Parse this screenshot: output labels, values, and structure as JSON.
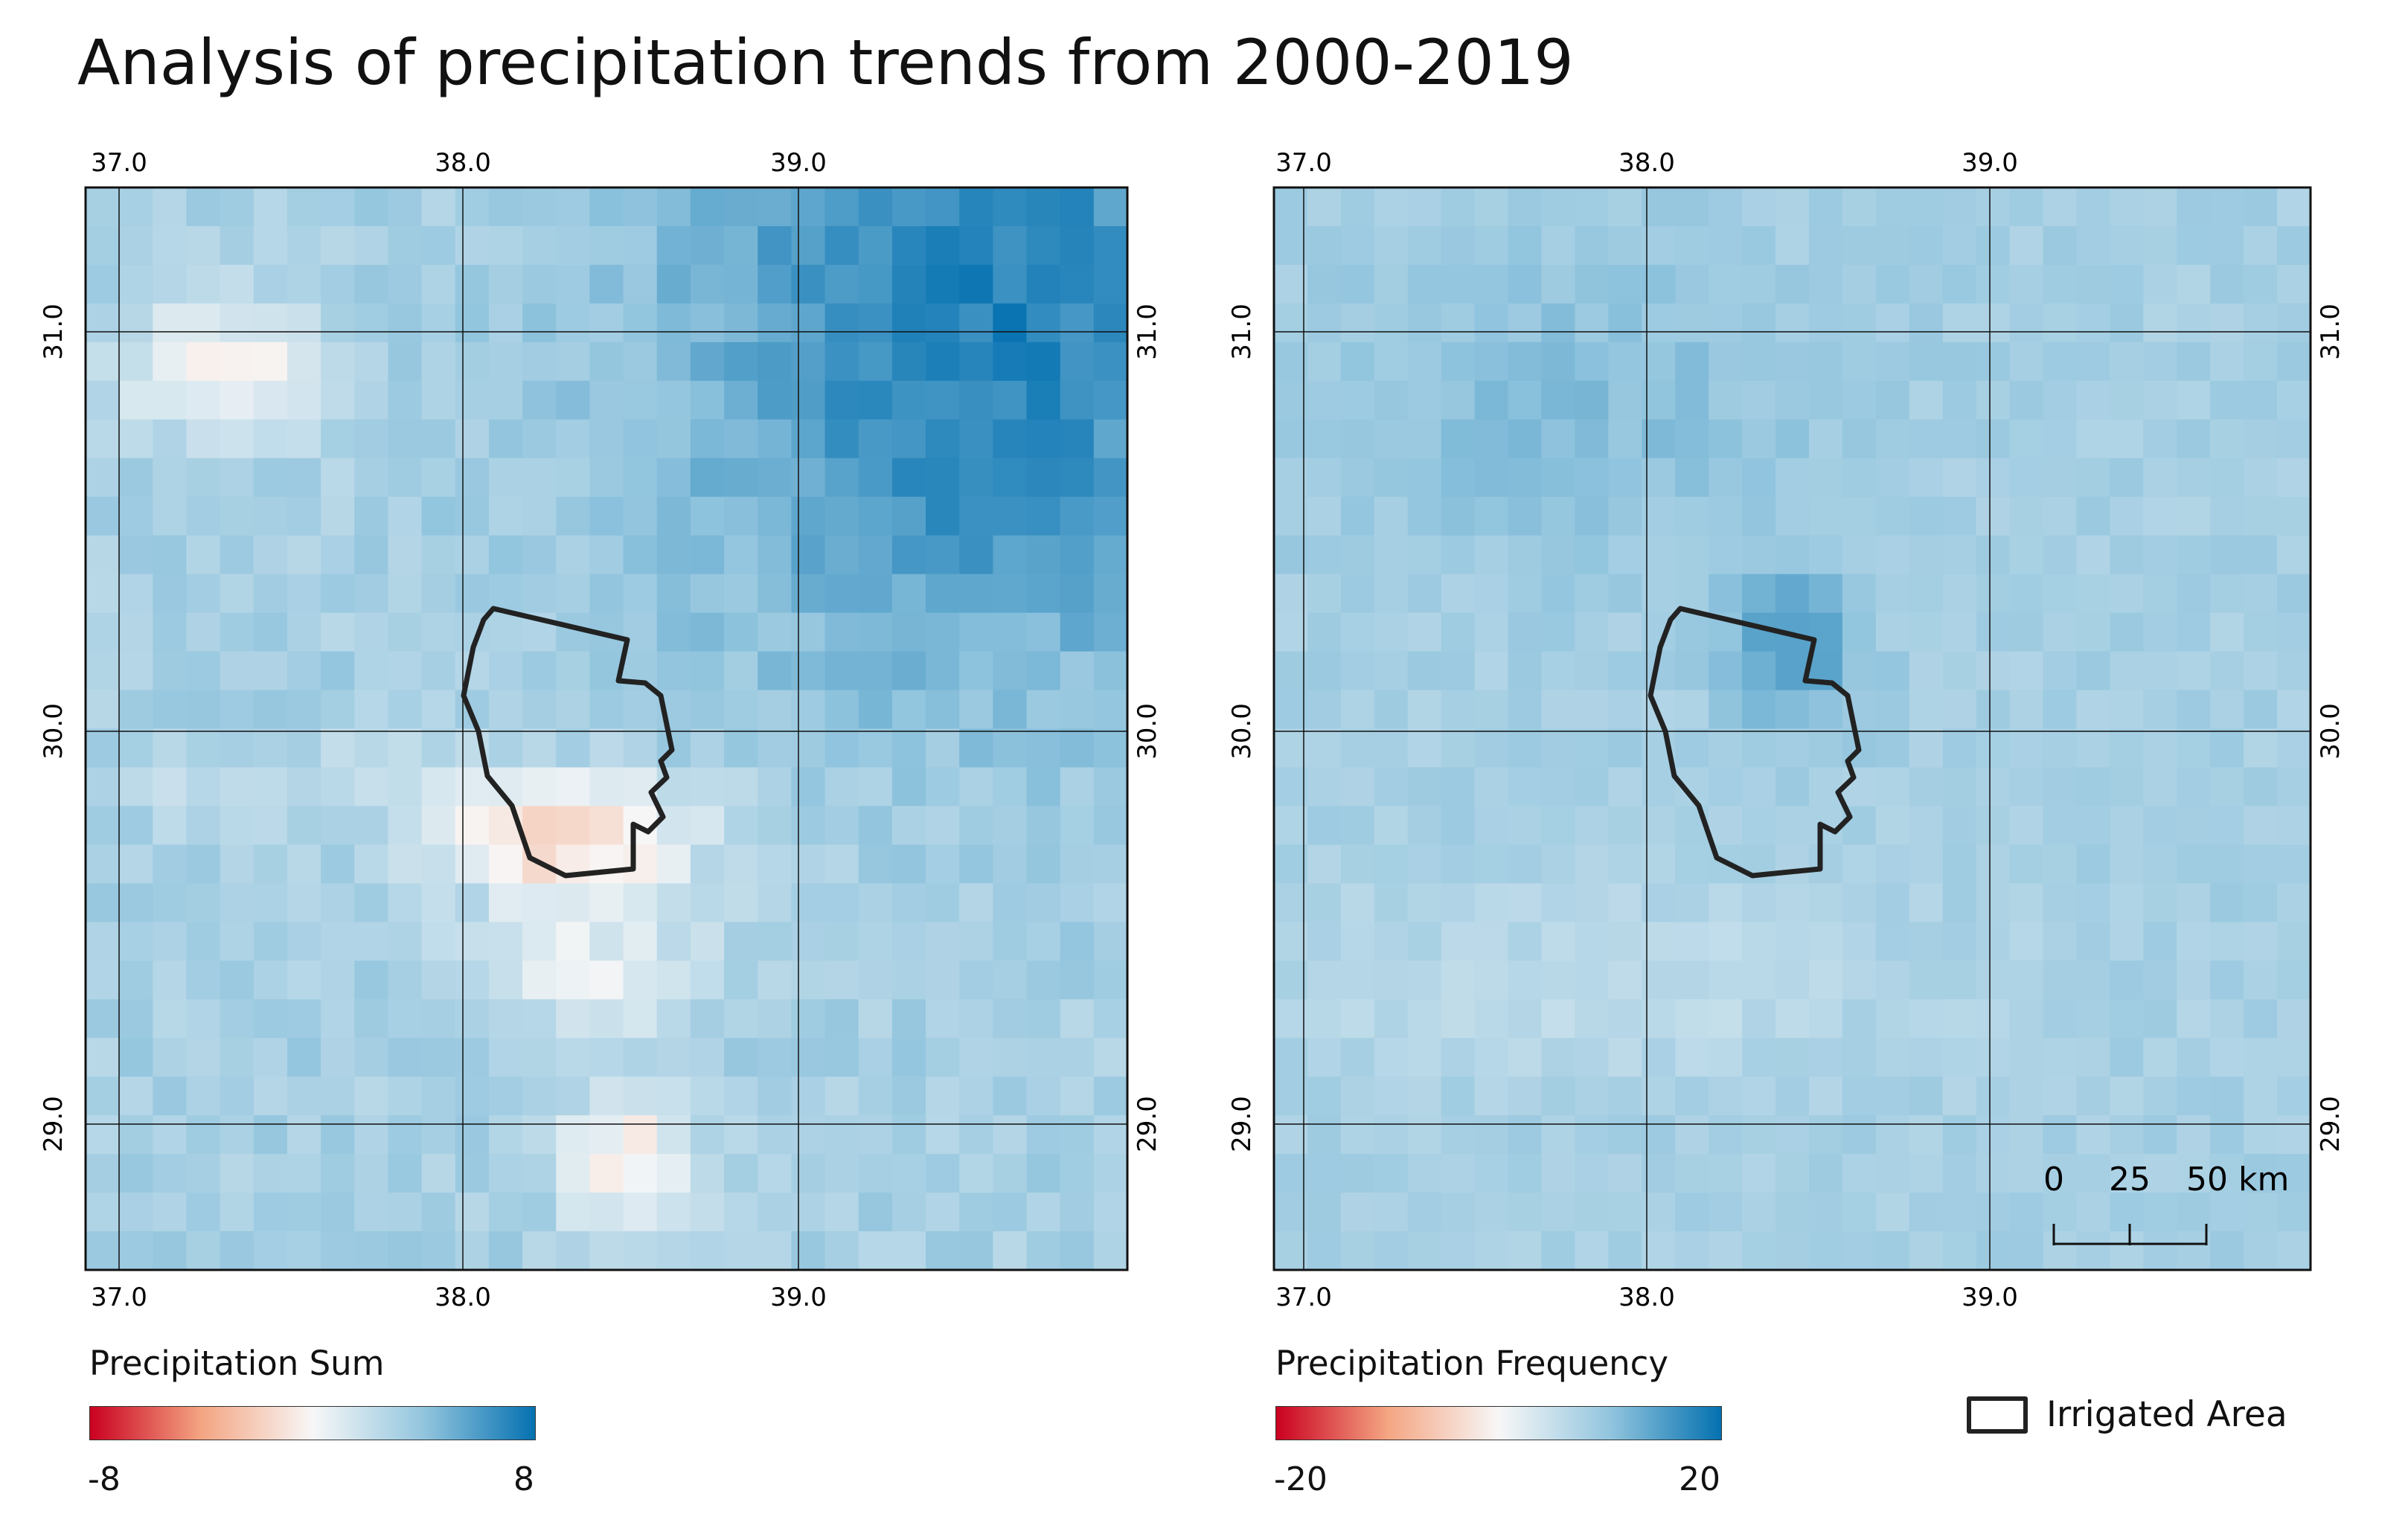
{
  "title": "Analysis of precipitation trends from 2000-2019",
  "axis_ticks": {
    "lon": [
      "37.0",
      "38.0",
      "39.0"
    ],
    "lat": [
      "31.0",
      "30.0",
      "29.0"
    ]
  },
  "panels": [
    {
      "id": "sum",
      "legend": {
        "title": "Precipitation Sum",
        "min": "-8",
        "max": "8"
      },
      "colormap": "RdBu (red negative, blue positive)"
    },
    {
      "id": "frequency",
      "legend": {
        "title": "Precipitation Frequency",
        "min": "-20",
        "max": "20"
      },
      "colormap": "RdBu (red negative, blue positive)"
    }
  ],
  "scale_bar": {
    "labels": [
      "0",
      "25",
      "50 km"
    ]
  },
  "irrigated_area_legend": {
    "label": "Irrigated Area"
  },
  "colors": {
    "neg_strong": "#ca0020",
    "neg_light": "#f4a582",
    "neutral": "#f7f7f7",
    "pos_light": "#92c5de",
    "pos_strong": "#0571b0",
    "outline": "#222222"
  }
}
